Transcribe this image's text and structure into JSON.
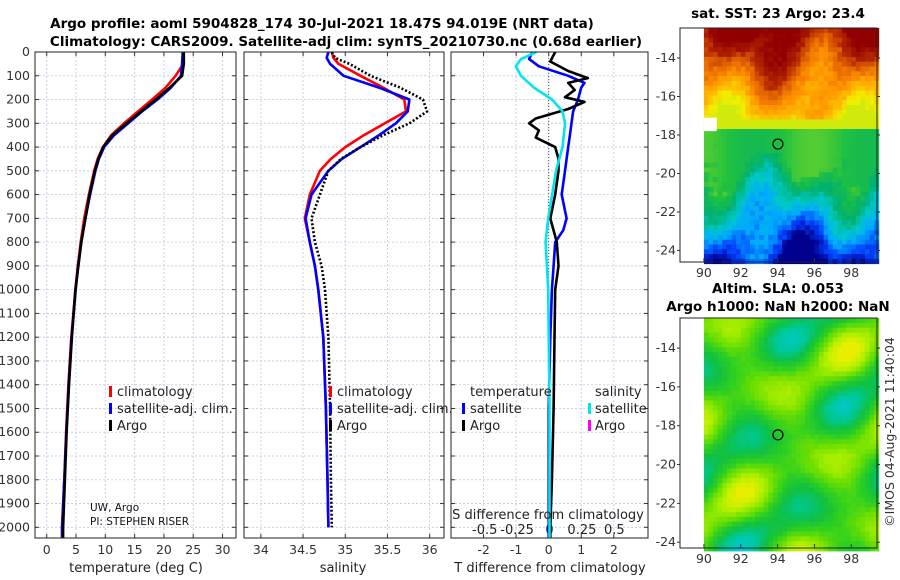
{
  "title": {
    "line1": "Argo profile: aoml 5904828_174 30-Jul-2021 18.47S 94.019E (NRT data)",
    "line2": "Climatology: CARS2009. Satellite-adj clim: synTS_20210730.nc (0.68d earlier)"
  },
  "credit": {
    "line1": "UW, Argo",
    "line2": "PI: STEPHEN RISER"
  },
  "timestamp": "©IMOS 04-Aug-2021 11:40:04",
  "colors": {
    "climatology": "#ff0000",
    "satellite": "#0000ff",
    "argo": "#000000",
    "sal_satellite": "#00e5ee",
    "sal_argo": "#ff00ff",
    "grid": "#b8c8e8"
  },
  "chart_data": [
    {
      "type": "line",
      "title": "",
      "xlabel": "temperature (deg C)",
      "ylabel": "",
      "xlim": [
        -2,
        32.3
      ],
      "ylim": [
        0,
        2045
      ],
      "y_reversed": true,
      "grid": true,
      "xticks": [
        0,
        5,
        10,
        15,
        20,
        25,
        30
      ],
      "yticks": [
        0,
        100,
        200,
        300,
        400,
        500,
        600,
        700,
        800,
        900,
        1000,
        1100,
        1200,
        1300,
        1400,
        1500,
        1600,
        1700,
        1800,
        1900,
        2000
      ],
      "legend": [
        "climatology",
        "satellite-adj. clim.",
        "Argo"
      ],
      "legend_placement": "lower-center",
      "depth": [
        0,
        50,
        100,
        150,
        200,
        250,
        300,
        350,
        400,
        450,
        500,
        600,
        700,
        800,
        900,
        1000,
        1200,
        1400,
        1600,
        1800,
        2000,
        2045
      ],
      "series": [
        {
          "name": "climatology",
          "color": "#ff0000",
          "style": "solid",
          "values": [
            23.3,
            23.3,
            22.0,
            20.3,
            18.0,
            15.6,
            13.2,
            11.0,
            9.6,
            8.7,
            8.1,
            7.2,
            6.4,
            5.8,
            5.3,
            4.9,
            4.2,
            3.7,
            3.3,
            3.0,
            2.6,
            2.6
          ]
        },
        {
          "name": "satellite-adj. clim.",
          "color": "#0000ff",
          "style": "solid",
          "values": [
            23.2,
            23.1,
            22.9,
            21.2,
            18.9,
            16.3,
            13.9,
            11.5,
            9.8,
            8.9,
            8.3,
            7.4,
            6.6,
            5.9,
            5.35,
            4.95,
            4.25,
            3.75,
            3.35,
            3.0,
            2.65,
            2.65
          ]
        },
        {
          "name": "Argo",
          "color": "#000000",
          "style": "solid",
          "values": [
            23.4,
            23.4,
            23.1,
            21.0,
            18.6,
            16.1,
            13.6,
            11.2,
            9.6,
            8.8,
            8.2,
            7.3,
            6.6,
            5.9,
            5.4,
            4.9,
            4.3,
            3.8,
            3.4,
            3.1,
            2.8,
            2.8
          ]
        }
      ]
    },
    {
      "type": "line",
      "xlabel": "salinity",
      "xlim": [
        33.8,
        36.17
      ],
      "ylim": [
        0,
        2045
      ],
      "y_reversed": true,
      "grid": true,
      "xticks": [
        34,
        34.5,
        35,
        35.5,
        36
      ],
      "legend": [
        "climatology",
        "satellite-adj. clim.",
        "Argo"
      ],
      "legend_placement": "lower-center",
      "depth": [
        0,
        25,
        50,
        100,
        150,
        200,
        250,
        300,
        350,
        400,
        450,
        500,
        600,
        700,
        800,
        900,
        1000,
        1200,
        1500,
        1800,
        2000
      ],
      "series": [
        {
          "name": "climatology",
          "color": "#ff0000",
          "style": "solid",
          "values": [
            34.84,
            34.86,
            34.92,
            35.18,
            35.45,
            35.7,
            35.72,
            35.47,
            35.22,
            35.0,
            34.83,
            34.7,
            34.58,
            34.52,
            34.58,
            34.64,
            34.68,
            34.74,
            34.77,
            34.79,
            34.8
          ]
        },
        {
          "name": "satellite-adj. clim.",
          "color": "#0000ff",
          "style": "solid",
          "values": [
            34.8,
            34.78,
            34.82,
            34.98,
            35.4,
            35.76,
            35.74,
            35.6,
            35.4,
            35.18,
            34.96,
            34.8,
            34.6,
            34.53,
            34.58,
            34.64,
            34.68,
            34.74,
            34.77,
            34.79,
            34.8
          ]
        },
        {
          "name": "Argo",
          "color": "#000000",
          "style": "dotted",
          "values": [
            34.84,
            34.88,
            35.05,
            35.3,
            35.65,
            35.92,
            35.97,
            35.76,
            35.45,
            35.18,
            34.95,
            34.8,
            34.7,
            34.6,
            34.64,
            34.72,
            34.76,
            34.8,
            34.82,
            34.83,
            34.84
          ]
        }
      ]
    },
    {
      "type": "line",
      "xlabel": "T difference from climatology",
      "xlabel2": "S difference from climatology",
      "xlim": [
        -3.0,
        3.05
      ],
      "s_xlim": [
        -0.76,
        0.76
      ],
      "ylim": [
        0,
        2045
      ],
      "y_reversed": true,
      "grid": true,
      "xticks": [
        -2,
        -1,
        0,
        1,
        2
      ],
      "s_xticks": [
        "-0.5",
        "-0.25",
        "0",
        "0.25",
        "0.5"
      ],
      "s_xtick_values": [
        -0.5,
        -0.25,
        0,
        0.25,
        0.5
      ],
      "legend_temperature": {
        "title": "temperature",
        "items": [
          "satellite",
          "Argo"
        ]
      },
      "legend_salinity": {
        "title": "salinity",
        "items": [
          "satellite",
          "Argo"
        ]
      },
      "series": [
        {
          "name": "temperature satellite",
          "axis": "T",
          "color": "#0000ff",
          "depth": [
            0,
            30,
            60,
            100,
            130,
            150,
            200,
            250,
            300,
            350,
            400,
            500,
            600,
            700,
            750,
            800,
            900,
            1000,
            1200,
            1500,
            2000,
            2045
          ],
          "values": [
            -0.5,
            -0.6,
            -0.3,
            0.6,
            1.1,
            1.0,
            0.9,
            0.75,
            0.7,
            0.65,
            0.6,
            0.5,
            0.4,
            0.55,
            0.45,
            0.2,
            0.15,
            0.1,
            0.05,
            0.0,
            0.0,
            0.0
          ]
        },
        {
          "name": "temperature Argo",
          "axis": "T",
          "color": "#000000",
          "depth": [
            0,
            40,
            80,
            110,
            130,
            160,
            190,
            210,
            240,
            280,
            300,
            330,
            360,
            400,
            450,
            500,
            600,
            700,
            800,
            900,
            1000,
            1200,
            1500,
            1800,
            2000,
            2045
          ],
          "values": [
            0.2,
            0.05,
            0.6,
            1.2,
            0.6,
            0.8,
            0.5,
            1.1,
            0.6,
            -0.4,
            -0.6,
            -0.3,
            -0.4,
            0.2,
            0.3,
            0.3,
            0.2,
            0.05,
            0.25,
            0.3,
            0.2,
            0.18,
            0.15,
            0.1,
            0.05,
            0.05
          ]
        },
        {
          "name": "salinity satellite",
          "axis": "S",
          "color": "#00e5ee",
          "depth": [
            0,
            30,
            60,
            100,
            150,
            200,
            250,
            300,
            400,
            500,
            600,
            700,
            800,
            900,
            1000,
            1500,
            2000,
            2045
          ],
          "values": [
            -0.1,
            -0.22,
            -0.26,
            -0.22,
            -0.12,
            0.02,
            0.1,
            0.12,
            0.1,
            0.05,
            0.02,
            -0.01,
            -0.03,
            -0.02,
            -0.01,
            0.0,
            0.0,
            0.0
          ]
        }
      ]
    },
    {
      "type": "heatmap",
      "title": "sat. SST: 23 Argo: 23.4",
      "xlim": [
        88.7,
        99.4
      ],
      "ylim": [
        -24.6,
        -12.44
      ],
      "xticks": [
        90,
        92,
        94,
        96,
        98
      ],
      "yticks": [
        -14,
        -16,
        -18,
        -20,
        -22,
        -24
      ],
      "marker": {
        "lon": 94.019,
        "lat": -18.47
      },
      "colormap": [
        "#00008f",
        "#0040ff",
        "#00a8ff",
        "#00c8c8",
        "#00b070",
        "#20c040",
        "#a0e020",
        "#f0f000",
        "#ffc000",
        "#ff9000",
        "#e06000",
        "#b02000",
        "#900000"
      ]
    },
    {
      "type": "heatmap",
      "title": "Altim. SLA: 0.053",
      "subtitle": "Argo h1000: NaN h2000: NaN",
      "xlim": [
        88.7,
        99.4
      ],
      "ylim": [
        -24.3,
        -12.45
      ],
      "xticks": [
        90,
        92,
        94,
        96,
        98
      ],
      "yticks": [
        -14,
        -16,
        -18,
        -20,
        -22,
        -24
      ],
      "marker": {
        "lon": 94.019,
        "lat": -18.47
      },
      "colormap": [
        "#00c8d0",
        "#00c890",
        "#10c040",
        "#30d020",
        "#70e000",
        "#b0f000",
        "#e8f000",
        "#f8e000"
      ]
    }
  ]
}
